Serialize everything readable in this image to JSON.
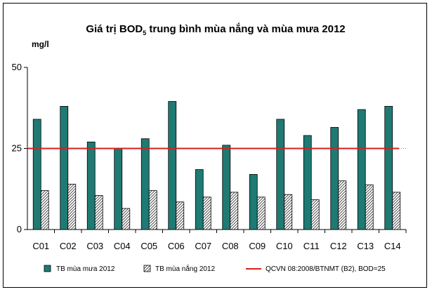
{
  "chart_data": {
    "type": "bar",
    "title_main": "Giá trị BOD",
    "title_sub": "5",
    "title_rest": " trung bình mùa nắng và mùa mưa 2012",
    "ylabel": "mg/l",
    "xlabel": "",
    "ylim": [
      0,
      50
    ],
    "yticks": [
      "0",
      "25",
      "50"
    ],
    "grid": false,
    "legend_position": "bottom",
    "categories": [
      "C01",
      "C02",
      "C03",
      "C04",
      "C05",
      "C06",
      "C07",
      "C08",
      "C09",
      "C10",
      "C11",
      "C12",
      "C13",
      "C14"
    ],
    "series": [
      {
        "name": "TB mùa mưa 2012",
        "color": "#1f7a73",
        "pattern": "solid",
        "values": [
          34,
          38,
          27,
          25,
          28,
          39.5,
          18.5,
          26,
          17,
          34,
          29,
          31.5,
          37,
          38
        ]
      },
      {
        "name": "TB mùa nắng 2012",
        "color": "#ffffff",
        "pattern": "hatched",
        "values": [
          12,
          14,
          10.5,
          6.5,
          12,
          8.5,
          10,
          11.5,
          10,
          10.8,
          9.2,
          15,
          13.8,
          11.5
        ]
      }
    ],
    "reference_line": {
      "name": "QCVN 08:2008/BTNMT (B2), BOD=25",
      "value": 25,
      "color": "#d42020"
    }
  }
}
